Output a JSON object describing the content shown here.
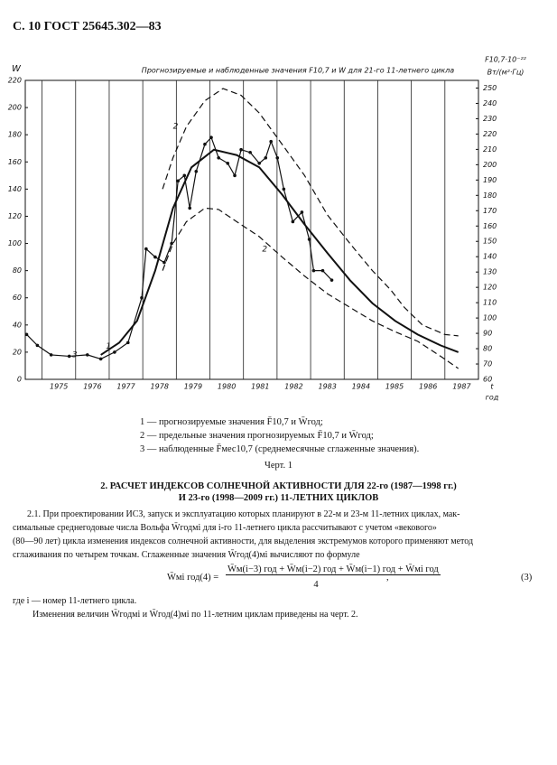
{
  "header": "С. 10 ГОСТ 25645.302—83",
  "chart_data": {
    "type": "line",
    "title": "Прогнозируемые и наблюденные значения F10,7 и W для 21-го 11-летнего цикла",
    "y_label": "W",
    "y2_label_top": "F10,7·10⁻²²",
    "y2_label_bottom": "Вт/(м²·Гц)",
    "x_label_top": "t",
    "x_label_bottom": "год",
    "xlim": [
      1974.5,
      1988
    ],
    "xticks": [
      {
        "value": 1975.5,
        "label": "1975"
      },
      {
        "value": 1976.5,
        "label": "1976"
      },
      {
        "value": 1977.5,
        "label": "1977"
      },
      {
        "value": 1978.5,
        "label": "1978"
      },
      {
        "value": 1979.5,
        "label": "1979"
      },
      {
        "value": 1980.5,
        "label": "1980"
      },
      {
        "value": 1981.5,
        "label": "1981"
      },
      {
        "value": 1982.5,
        "label": "1982"
      },
      {
        "value": 1983.5,
        "label": "1983"
      },
      {
        "value": 1984.5,
        "label": "1984"
      },
      {
        "value": 1985.5,
        "label": "1985"
      },
      {
        "value": 1986.5,
        "label": "1986"
      },
      {
        "value": 1987.5,
        "label": "1987"
      }
    ],
    "ylim": [
      0,
      220
    ],
    "yticks": [
      0,
      20,
      40,
      60,
      80,
      100,
      120,
      140,
      160,
      180,
      200,
      220
    ],
    "y2lim": [
      60,
      255
    ],
    "y2ticks": [
      60,
      70,
      80,
      90,
      100,
      110,
      120,
      130,
      140,
      150,
      160,
      170,
      180,
      190,
      200,
      210,
      220,
      230,
      240,
      250
    ],
    "grid": true,
    "series": [
      {
        "name": "1",
        "color": "#111111",
        "style": "solid",
        "x": [
          1976.75,
          1977.3,
          1977.83,
          1978.37,
          1978.9,
          1979.45,
          1980.12,
          1980.8,
          1981.47,
          1982.15,
          1982.82,
          1983.5,
          1984.17,
          1984.84,
          1985.52,
          1986.19,
          1986.87,
          1987.4
        ],
        "values": [
          18,
          27,
          43,
          80,
          126,
          156,
          169,
          165,
          156,
          136,
          114,
          93,
          73,
          56,
          43,
          33,
          25,
          20
        ]
      },
      {
        "name": "2",
        "color": "#111111",
        "style": "dashed",
        "x": [
          1978.59,
          1978.9,
          1979.3,
          1979.85,
          1980.39,
          1980.93,
          1981.47,
          1982.15,
          1982.82,
          1983.5,
          1984.17,
          1984.84,
          1985.38,
          1985.79,
          1986.33,
          1987.0,
          1987.4
        ],
        "values": [
          140,
          163,
          186,
          205,
          214,
          209,
          196,
          173,
          150,
          121,
          100,
          80,
          66,
          53,
          40,
          33,
          32
        ]
      },
      {
        "name": "2",
        "color": "#111111",
        "style": "dashed",
        "x": [
          1978.59,
          1978.9,
          1979.3,
          1979.85,
          1980.26,
          1980.8,
          1981.47,
          1982.15,
          1982.82,
          1983.5,
          1984.17,
          1984.84,
          1985.52,
          1986.19,
          1986.87,
          1987.4
        ],
        "values": [
          80,
          100,
          116,
          126,
          125,
          116,
          105,
          90,
          76,
          63,
          53,
          43,
          35,
          28,
          17,
          8
        ]
      },
      {
        "name": "3",
        "color": "#111111",
        "style": "markers",
        "x": [
          1974.54,
          1974.86,
          1975.27,
          1975.81,
          1976.35,
          1976.75,
          1977.16,
          1977.56,
          1977.97,
          1978.1,
          1978.37,
          1978.64,
          1978.86,
          1979.05,
          1979.24,
          1979.4,
          1979.59,
          1979.85,
          1980.04,
          1980.26,
          1980.53,
          1980.74,
          1980.93,
          1981.2,
          1981.47,
          1981.66,
          1981.82,
          1982.01,
          1982.2,
          1982.47,
          1982.74,
          1982.96,
          1983.09,
          1983.36,
          1983.63
        ],
        "values": [
          33,
          25,
          18,
          17,
          18,
          15,
          20,
          27,
          60,
          96,
          90,
          86,
          100,
          146,
          150,
          126,
          153,
          173,
          178,
          163,
          159,
          150,
          169,
          167,
          159,
          163,
          175,
          163,
          140,
          116,
          123,
          103,
          80,
          80,
          73
        ]
      }
    ]
  },
  "notes": [
    "1 — прогнозируемые значения F̄10,7 и W̄год;",
    "2 — предельные значения прогнозируемых F̄10,7 и W̄год;",
    "3 — наблюденные F̄мес10,7 (среднемесячные сглаженные значения)."
  ],
  "caption": "Черт. 1",
  "section": {
    "heading": [
      "2. РАСЧЕТ ИНДЕКСОВ СОЛНЕЧНОЙ АКТИВНОСТИ ДЛЯ 22-го (1987—1998 гг.)",
      "И 23-го (1998—2009 гг.) 11-ЛЕТНИХ ЦИКЛОВ"
    ],
    "paragraph": [
      "2.1. При проектировании ИСЗ, запуск и эксплуатацию которых планируют в 22-м и 23-м 11-летних циклах, мак-",
      "симальные среднегодовые числа Вольфа W̄годмi для i-го 11-летнего цикла рассчитывают с учетом «векового»",
      "(80—90 лет) цикла изменения индексов солнечной активности, для выделения экстремумов которого применяют метод",
      "сглаживания по четырем точкам. Сглаженные значения W̄год(4)мi вычисляют по формуле"
    ],
    "formula": {
      "lhs": "W̄мi год(4) =",
      "numerator": "W̄м(i−3) год + W̄м(i−2) год + W̄м(i−1) год + W̄мi год",
      "denominator": "4",
      "punct": ",",
      "number": "(3)"
    },
    "where": "где i — номер 11-летнего цикла.",
    "last": "Изменения величин W̄годмi и W̄год(4)мi по 11-летним циклам приведены на черт. 2."
  }
}
